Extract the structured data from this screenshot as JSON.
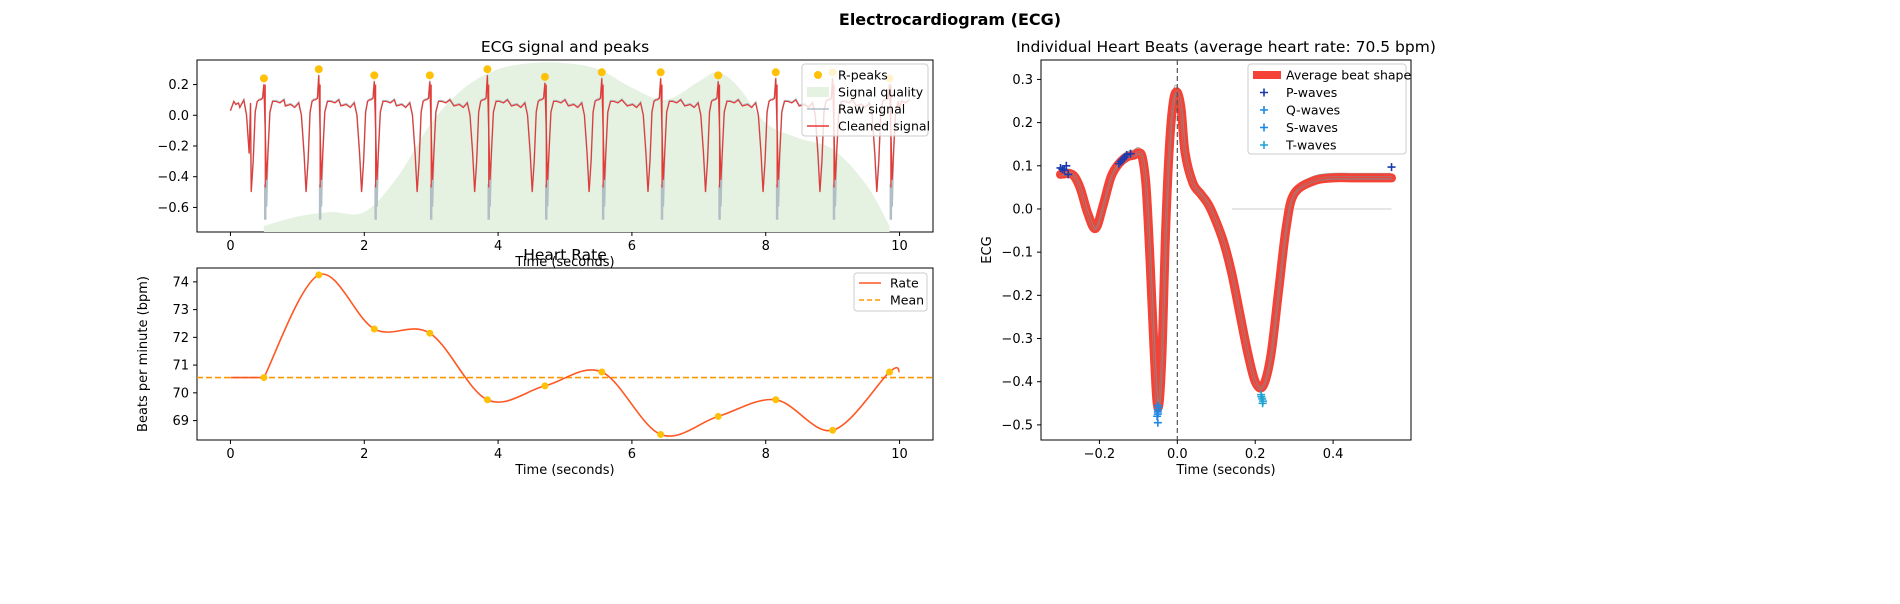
{
  "figure": {
    "suptitle": "Electrocardiogram (ECG)"
  },
  "colors": {
    "r_peaks": "#FFC107",
    "quality_fill": "#e5f2e2",
    "raw_signal": "#B0BEC5",
    "cleaned_signal": "#E53935",
    "rate": "#FF5722",
    "mean": "#FF9800",
    "avg_beat": "#F44336",
    "p_waves": "#1a3bb0",
    "q_waves": "#1e88e5",
    "s_waves": "#1e88e5",
    "t_waves": "#1fa4d4",
    "grid_line": "#cccccc"
  },
  "chart_data": [
    {
      "id": "ecg",
      "type": "line",
      "title": "ECG signal and peaks",
      "xlabel": "Time (seconds)",
      "ylabel": "",
      "xlim": [
        -0.5,
        10.5
      ],
      "ylim": [
        -0.76,
        0.36
      ],
      "xticks": [
        0,
        2,
        4,
        6,
        8,
        10
      ],
      "yticks": [
        -0.6,
        -0.4,
        -0.2,
        0.0,
        0.2
      ],
      "ytick_labels": [
        "−0.6",
        "−0.4",
        "−0.2",
        "0.0",
        "0.2"
      ],
      "legend": [
        "R-peaks",
        "Signal quality",
        "Raw signal",
        "Cleaned signal"
      ],
      "legend_position": "upper right",
      "r_peaks": {
        "x": [
          0.5,
          1.32,
          2.15,
          2.98,
          3.84,
          4.7,
          5.55,
          6.43,
          7.29,
          8.15,
          9.0,
          9.85
        ],
        "y": [
          0.24,
          0.3,
          0.26,
          0.26,
          0.3,
          0.25,
          0.28,
          0.28,
          0.26,
          0.28,
          0.28,
          0.24
        ]
      },
      "beat_times": [
        0.5,
        1.32,
        2.15,
        2.98,
        3.84,
        4.7,
        5.55,
        6.43,
        7.29,
        8.15,
        9.0,
        9.85
      ],
      "signal_quality": {
        "x": [
          0.5,
          1.0,
          1.5,
          2.0,
          2.5,
          3.0,
          3.5,
          4.0,
          4.5,
          5.0,
          5.5,
          6.0,
          6.5,
          7.0,
          7.29,
          7.6,
          8.0,
          8.5,
          9.0,
          9.5,
          9.85
        ],
        "y": [
          -0.72,
          -0.66,
          -0.63,
          -0.63,
          -0.4,
          -0.05,
          0.18,
          0.3,
          0.34,
          0.34,
          0.3,
          0.18,
          0.1,
          0.22,
          0.28,
          0.18,
          -0.05,
          -0.15,
          -0.22,
          -0.45,
          -0.72
        ]
      }
    },
    {
      "id": "rate",
      "type": "line",
      "title": "Heart Rate",
      "xlabel": "Time (seconds)",
      "ylabel": "Beats per minute (bpm)",
      "xlim": [
        -0.5,
        10.5
      ],
      "ylim": [
        68.3,
        74.5
      ],
      "xticks": [
        0,
        2,
        4,
        6,
        8,
        10
      ],
      "yticks": [
        69,
        70,
        71,
        72,
        73,
        74
      ],
      "legend": [
        "Rate",
        "Mean"
      ],
      "legend_position": "upper right",
      "mean": 70.55,
      "points": {
        "x": [
          0.5,
          1.32,
          2.15,
          2.98,
          3.84,
          4.7,
          5.55,
          6.43,
          7.29,
          8.15,
          9.0,
          9.85
        ],
        "y": [
          70.55,
          74.25,
          72.3,
          72.15,
          69.75,
          70.25,
          70.75,
          68.5,
          69.15,
          69.75,
          68.65,
          70.75
        ]
      },
      "line_start": [
        0.0,
        70.55
      ],
      "line_end": [
        10.0,
        70.75
      ]
    },
    {
      "id": "beats",
      "type": "line",
      "title": "Individual Heart Beats (average heart rate: 70.5 bpm)",
      "xlabel": "Time (seconds)",
      "ylabel": "ECG",
      "xlim": [
        -0.35,
        0.6
      ],
      "ylim": [
        -0.535,
        0.345
      ],
      "xticks": [
        -0.2,
        0.0,
        0.2,
        0.4
      ],
      "xtick_labels": [
        "−0.2",
        "0.0",
        "0.2",
        "0.4"
      ],
      "yticks": [
        -0.5,
        -0.4,
        -0.3,
        -0.2,
        -0.1,
        0.0,
        0.1,
        0.2,
        0.3
      ],
      "ytick_labels": [
        "−0.5",
        "−0.4",
        "−0.3",
        "−0.2",
        "−0.1",
        "0.0",
        "0.1",
        "0.2",
        "0.3"
      ],
      "legend": [
        "Average beat shape",
        "P-waves",
        "Q-waves",
        "S-waves",
        "T-waves"
      ],
      "legend_position": "upper right",
      "average_beat": {
        "x": [
          -0.3,
          -0.27,
          -0.25,
          -0.23,
          -0.21,
          -0.19,
          -0.17,
          -0.15,
          -0.13,
          -0.11,
          -0.1,
          -0.09,
          -0.08,
          -0.07,
          -0.06,
          -0.05,
          -0.04,
          -0.03,
          -0.02,
          -0.01,
          0.0,
          0.01,
          0.02,
          0.04,
          0.06,
          0.08,
          0.1,
          0.12,
          0.14,
          0.16,
          0.18,
          0.2,
          0.22,
          0.24,
          0.26,
          0.28,
          0.3,
          0.35,
          0.4,
          0.45,
          0.5,
          0.55
        ],
        "y": [
          0.08,
          0.08,
          0.05,
          -0.01,
          -0.045,
          0.01,
          0.075,
          0.105,
          0.12,
          0.125,
          0.13,
          0.12,
          0.05,
          -0.12,
          -0.32,
          -0.46,
          -0.35,
          -0.05,
          0.15,
          0.25,
          0.27,
          0.23,
          0.13,
          0.06,
          0.035,
          0.01,
          -0.03,
          -0.08,
          -0.15,
          -0.24,
          -0.33,
          -0.4,
          -0.41,
          -0.34,
          -0.19,
          -0.04,
          0.035,
          0.065,
          0.072,
          0.072,
          0.072,
          0.072
        ]
      },
      "zero_line": [
        0.14,
        0.55
      ],
      "p_waves": {
        "x": [
          -0.3,
          -0.29,
          -0.285,
          -0.28,
          -0.295
        ],
        "y": [
          0.095,
          0.09,
          0.1,
          0.08,
          0.092
        ]
      },
      "p_waves_extra": {
        "x": [
          0.55
        ],
        "y": [
          0.097
        ]
      },
      "q_waves": {
        "x": [
          -0.15,
          -0.14,
          -0.13,
          -0.12,
          -0.145,
          -0.135
        ],
        "y": [
          0.105,
          0.115,
          0.125,
          0.128,
          0.11,
          0.12
        ]
      },
      "s_waves": {
        "x": [
          -0.05,
          -0.05,
          -0.05,
          -0.05,
          -0.052,
          -0.048,
          -0.05
        ],
        "y": [
          -0.455,
          -0.465,
          -0.47,
          -0.475,
          -0.48,
          -0.46,
          -0.495
        ]
      },
      "t_waves": {
        "x": [
          0.215,
          0.218,
          0.22,
          0.216,
          0.219
        ],
        "y": [
          -0.43,
          -0.44,
          -0.445,
          -0.435,
          -0.45
        ]
      }
    }
  ]
}
